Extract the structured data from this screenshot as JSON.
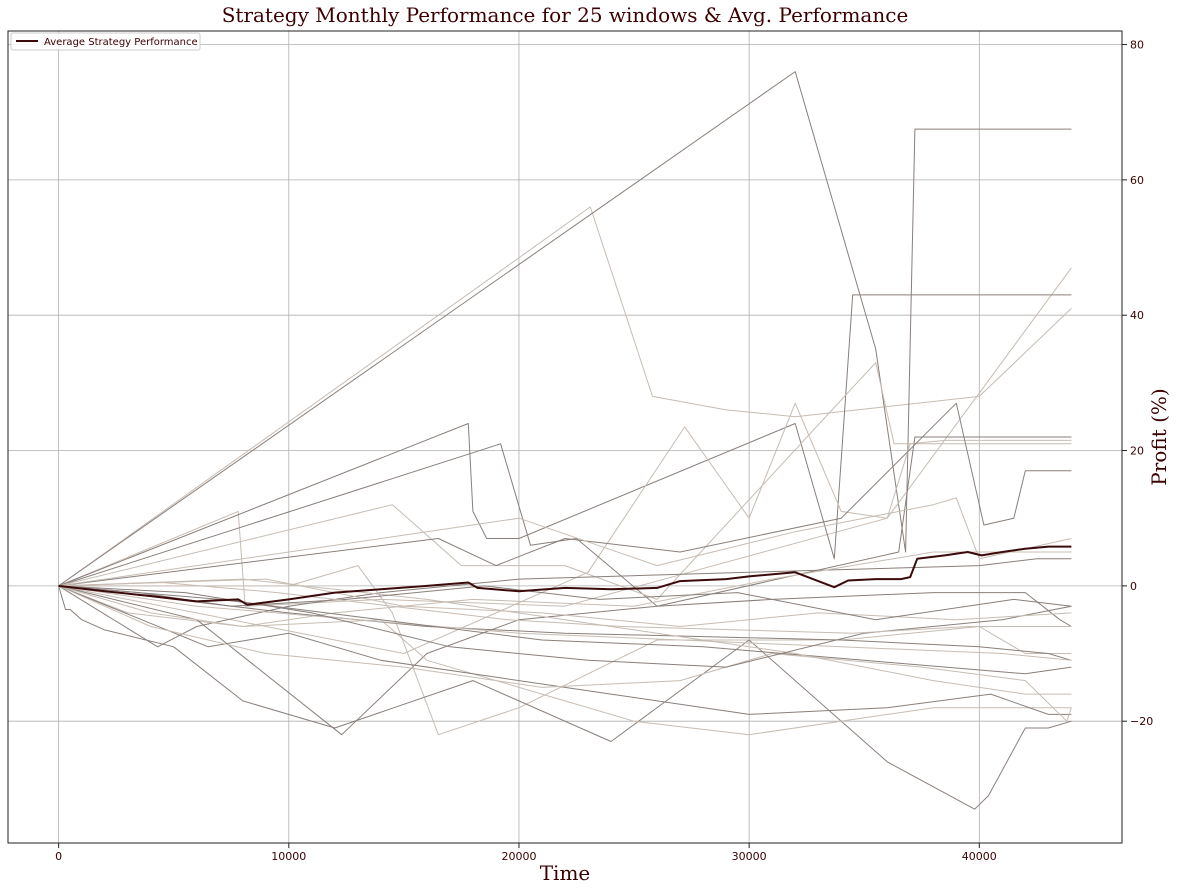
{
  "chart_data": {
    "type": "line",
    "title": "Strategy Monthly Performance for 25 windows & Avg. Performance",
    "xlabel": "Time",
    "ylabel": "Profit (%)",
    "y_axis_side": "right",
    "xlim": [
      -2200,
      46200
    ],
    "ylim": [
      -38,
      82
    ],
    "xticks": [
      0,
      10000,
      20000,
      30000,
      40000
    ],
    "yticks": [
      -20,
      0,
      20,
      40,
      60,
      80
    ],
    "grid": true,
    "legend": {
      "placement": "top-left",
      "entries": [
        "Average Strategy Performance"
      ]
    },
    "colors": {
      "average": "#3b0a0a",
      "window_dark": "#8a7f7a",
      "window_light": "#c7bcb2",
      "grid": "#b0b0b0",
      "text": "#3b0000"
    },
    "average_series": {
      "name": "Average Strategy Performance",
      "x": [
        0,
        2000,
        4000,
        6000,
        7800,
        8200,
        10000,
        12000,
        14000,
        16000,
        17800,
        18200,
        20000,
        22000,
        24000,
        26000,
        27000,
        29000,
        30000,
        32000,
        33700,
        34300,
        35500,
        36600,
        37000,
        37300,
        38500,
        39500,
        40100,
        41000,
        42000,
        43000,
        44000
      ],
      "values": [
        0,
        -0.8,
        -1.5,
        -2.3,
        -2.0,
        -2.8,
        -2.0,
        -1.0,
        -0.5,
        0,
        0.5,
        -0.3,
        -0.8,
        -0.3,
        -0.5,
        -0.3,
        0.7,
        1.0,
        1.4,
        2.0,
        -0.2,
        0.8,
        1.0,
        1.0,
        1.3,
        4.0,
        4.5,
        5.0,
        4.5,
        5.0,
        5.5,
        5.8,
        5.8
      ]
    },
    "window_series": [
      {
        "x": [
          0,
          23100,
          25800,
          29000,
          32000,
          40000,
          44000
        ],
        "values": [
          0,
          56,
          28,
          26,
          25,
          28,
          41
        ]
      },
      {
        "x": [
          0,
          32000,
          35500,
          36800,
          37200,
          44000
        ],
        "values": [
          0,
          76,
          35,
          5,
          67.5,
          67.5
        ]
      },
      {
        "x": [
          0,
          7800,
          8100,
          14000,
          22000,
          36000,
          44000
        ],
        "values": [
          0,
          11,
          -3,
          -2,
          -3,
          10,
          47
        ]
      },
      {
        "x": [
          0,
          17800,
          18000,
          18600,
          20000,
          32000,
          33700,
          34500,
          44000
        ],
        "values": [
          0,
          24,
          11,
          7,
          7,
          24,
          4,
          43,
          43
        ]
      },
      {
        "x": [
          0,
          15000,
          23000,
          27200,
          30000,
          32000,
          34000,
          36000,
          37000,
          38500,
          44000
        ],
        "values": [
          0,
          -10,
          2,
          23.5,
          10,
          27,
          11,
          10,
          21,
          21.5,
          21.5
        ]
      },
      {
        "x": [
          0,
          19200,
          20500,
          22500,
          26000,
          36500,
          37200,
          44000
        ],
        "values": [
          0,
          21,
          6,
          7,
          -3,
          5,
          22,
          22
        ]
      },
      {
        "x": [
          0,
          14500,
          17500,
          22000,
          26000,
          35500,
          36300,
          44000
        ],
        "values": [
          0,
          12,
          3,
          3,
          -2,
          33,
          21,
          21
        ]
      },
      {
        "x": [
          0,
          16500,
          19000,
          22000,
          27000,
          34000,
          39000,
          40200,
          41500,
          42000,
          44000
        ],
        "values": [
          0,
          7,
          3,
          7,
          5,
          10,
          27,
          9,
          10,
          17,
          17
        ]
      },
      {
        "x": [
          0,
          20000,
          26000,
          32000,
          38000,
          39000,
          40000,
          44000
        ],
        "values": [
          0,
          10,
          3,
          8,
          12,
          13,
          4,
          7
        ]
      },
      {
        "x": [
          0,
          4300,
          6000,
          10000,
          14000,
          20000,
          30000,
          40000,
          42500,
          44000
        ],
        "values": [
          0,
          -9,
          -6,
          -3,
          -1,
          1,
          2,
          3,
          4,
          4
        ]
      },
      {
        "x": [
          0,
          3000,
          8000,
          12000,
          18000,
          25000,
          31000,
          38000,
          44000
        ],
        "values": [
          0,
          -4,
          -6,
          -4,
          -2,
          -3,
          1,
          5,
          5
        ]
      },
      {
        "x": [
          0,
          6000,
          12300,
          16000,
          20000,
          26000,
          31000,
          38000,
          42000,
          43500,
          44000
        ],
        "values": [
          0,
          -5,
          -22,
          -10,
          -5,
          -3,
          -2,
          -1,
          -1,
          -5,
          -6
        ]
      },
      {
        "x": [
          0,
          10000,
          13000,
          14500,
          16500,
          20000,
          26000,
          34000,
          40000,
          42000,
          44000
        ],
        "values": [
          0,
          0,
          3,
          -4,
          -22,
          -18,
          -8,
          -8,
          -6,
          -10,
          -10
        ]
      },
      {
        "x": [
          0,
          300,
          500,
          1000,
          2000,
          5000,
          8000,
          12000,
          18000,
          24000,
          30000,
          36000,
          39800,
          40400,
          42000,
          43000,
          44000
        ],
        "values": [
          0,
          -3.5,
          -3.5,
          -5,
          -6.5,
          -9,
          -17,
          -21,
          -14,
          -23,
          -8,
          -26,
          -33,
          -31,
          -21,
          -21,
          -20
        ]
      },
      {
        "x": [
          0,
          4000,
          8000,
          14000,
          16000,
          21000,
          25000,
          30000,
          38000,
          43500,
          44000
        ],
        "values": [
          0,
          -4,
          -6,
          -5,
          -11,
          -16,
          -20,
          -22,
          -18,
          -18,
          -18
        ]
      },
      {
        "x": [
          0,
          6500,
          10000,
          14000,
          18000,
          24000,
          30000,
          36000,
          40500,
          43000,
          44000
        ],
        "values": [
          0,
          -9,
          -7,
          -11,
          -13,
          -16,
          -19,
          -18,
          -16,
          -19,
          -19
        ]
      },
      {
        "x": [
          0,
          4000,
          9000,
          15000,
          21000,
          27000,
          31000,
          37500,
          42000,
          43800,
          44000
        ],
        "values": [
          0,
          -6,
          -10,
          -12,
          -15,
          -14,
          -10,
          -12,
          -14,
          -20,
          -18
        ]
      },
      {
        "x": [
          0,
          5000,
          10000,
          16000,
          22000,
          28000,
          34000,
          40000,
          43000,
          44000
        ],
        "values": [
          0,
          -2,
          -4,
          -6,
          -7,
          -7.5,
          -8,
          -9,
          -10,
          -11
        ]
      },
      {
        "x": [
          0,
          6000,
          13000,
          20000,
          27000,
          34000,
          41000,
          44000
        ],
        "values": [
          0,
          -3,
          -5,
          -7,
          -8,
          -9,
          -10,
          -11
        ]
      },
      {
        "x": [
          0,
          7000,
          14000,
          21000,
          28000,
          35000,
          42000,
          44000
        ],
        "values": [
          0,
          -2,
          -5,
          -8,
          -9,
          -11,
          -13,
          -12
        ]
      },
      {
        "x": [
          0,
          8000,
          16000,
          24000,
          32000,
          38000,
          42000,
          44000
        ],
        "values": [
          0,
          1,
          -2,
          -6,
          -10,
          -14,
          -16,
          -16
        ]
      },
      {
        "x": [
          0,
          5500,
          11000,
          17000,
          23000,
          29000,
          35000,
          41000,
          44000
        ],
        "values": [
          0,
          -1,
          -4,
          -9,
          -11,
          -12,
          -7,
          -5,
          -3
        ]
      },
      {
        "x": [
          0,
          9000,
          15000,
          21000,
          27000,
          33000,
          39000,
          44000
        ],
        "values": [
          0,
          1,
          -3,
          -4,
          -6,
          -4,
          -5,
          -4
        ]
      },
      {
        "x": [
          0,
          3500,
          7500,
          12500,
          18500,
          23500,
          29500,
          35500,
          41500,
          44000
        ],
        "values": [
          0,
          -1,
          -3,
          -2,
          0,
          -2,
          -1,
          -5,
          -2,
          -3
        ]
      },
      {
        "x": [
          0,
          4500,
          9500,
          14500,
          19500,
          24500,
          29500,
          34500,
          39500,
          44000
        ],
        "values": [
          0,
          0.5,
          -1,
          -3,
          -5,
          -6,
          -6.5,
          -7,
          -6,
          -6
        ]
      }
    ]
  }
}
